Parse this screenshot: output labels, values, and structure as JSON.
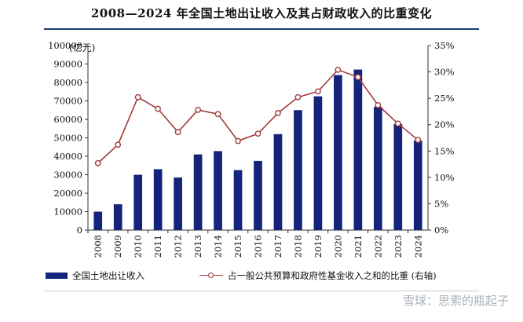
{
  "title": "2008—2024 年全国土地出让收入及其占财政收入的比重变化",
  "unit_label": "(亿元)",
  "legend": {
    "bar_label": "全国土地出让收入",
    "line_label": "占一般公共预算和政府性基金收入之和的比重 (右轴)"
  },
  "watermark": "雪球：思索的瓶起子",
  "colors": {
    "bar": "#13247a",
    "line": "#a33a3a"
  },
  "chart_data": {
    "type": "bar",
    "categories": [
      "2008",
      "2009",
      "2010",
      "2011",
      "2012",
      "2013",
      "2014",
      "2015",
      "2016",
      "2017",
      "2018",
      "2019",
      "2020",
      "2021",
      "2022",
      "2023",
      "2024"
    ],
    "series": [
      {
        "name": "全国土地出让收入",
        "type": "bar",
        "axis": "left",
        "values": [
          10000,
          14000,
          30000,
          33000,
          28500,
          41000,
          42800,
          32500,
          37500,
          52000,
          65000,
          72500,
          84000,
          87000,
          66800,
          57500,
          48500
        ]
      },
      {
        "name": "占一般公共预算和政府性基金收入之和的比重 (右轴)",
        "type": "line",
        "axis": "right",
        "values": [
          12.7,
          16.2,
          25.2,
          23.0,
          18.6,
          22.8,
          22.0,
          16.9,
          18.3,
          22.2,
          25.2,
          26.3,
          30.4,
          29.0,
          23.7,
          20.2,
          17.1
        ]
      }
    ],
    "y_left": {
      "min": 0,
      "max": 100000,
      "ticks": [
        "0",
        "10000",
        "20000",
        "30000",
        "40000",
        "50000",
        "60000",
        "70000",
        "80000",
        "90000",
        "100000"
      ]
    },
    "y_right": {
      "min": 0,
      "max": 35,
      "ticks": [
        "0%",
        "5%",
        "10%",
        "15%",
        "20%",
        "25%",
        "30%",
        "35%"
      ]
    },
    "grid": false
  }
}
